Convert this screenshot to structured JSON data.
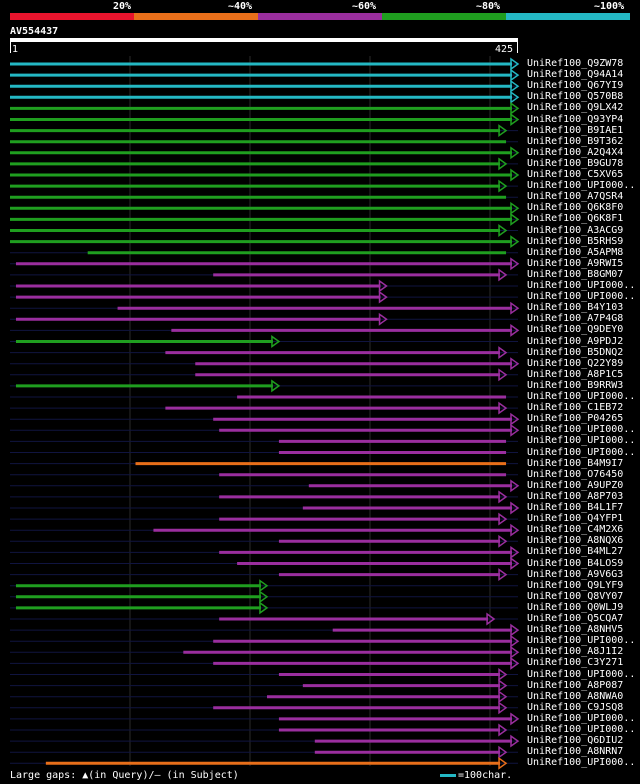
{
  "legend": {
    "colors": [
      "#e8142d",
      "#e86f1a",
      "#9a2e9e",
      "#1f9e1f",
      "#24b8c4"
    ],
    "labels": [
      "20%",
      "~40%",
      "~60%",
      "~80%",
      "~100%"
    ]
  },
  "query": {
    "name": "AV554437",
    "start": "1",
    "end": "425"
  },
  "footer": {
    "gaps": "Large gaps: ▲(in Query)/– (in Subject)",
    "scale": "=100char."
  },
  "hits": [
    {
      "label": "UniRef100_Q9ZW78",
      "c": "cyan",
      "s": 0,
      "e": 425,
      "arrow": true
    },
    {
      "label": "UniRef100_Q94A14",
      "c": "cyan",
      "s": 0,
      "e": 425,
      "arrow": true
    },
    {
      "label": "UniRef100_Q67YI9",
      "c": "cyan",
      "s": 0,
      "e": 425,
      "arrow": true
    },
    {
      "label": "UniRef100_Q570B8",
      "c": "cyan",
      "s": 0,
      "e": 425,
      "arrow": true
    },
    {
      "label": "UniRef100_Q9LX42",
      "c": "green",
      "s": 0,
      "e": 425,
      "arrow": true
    },
    {
      "label": "UniRef100_Q93YP4",
      "c": "green",
      "s": 0,
      "e": 425,
      "arrow": true
    },
    {
      "label": "UniRef100_B9IAE1",
      "c": "green",
      "s": 0,
      "e": 415,
      "arrow": true
    },
    {
      "label": "UniRef100_B9T362",
      "c": "green",
      "s": 0,
      "e": 415,
      "arrow": false
    },
    {
      "label": "UniRef100_A2Q4X4",
      "c": "green",
      "s": 0,
      "e": 425,
      "arrow": true
    },
    {
      "label": "UniRef100_B9GU78",
      "c": "green",
      "s": 0,
      "e": 415,
      "arrow": true
    },
    {
      "label": "UniRef100_C5XV65",
      "c": "green",
      "s": 0,
      "e": 425,
      "arrow": true
    },
    {
      "label": "UniRef100_UPI000..",
      "c": "green",
      "s": 0,
      "e": 415,
      "arrow": true
    },
    {
      "label": "UniRef100_A7QSR4",
      "c": "green",
      "s": 0,
      "e": 415,
      "arrow": false
    },
    {
      "label": "UniRef100_Q6K8F0",
      "c": "green",
      "s": 0,
      "e": 425,
      "arrow": true
    },
    {
      "label": "UniRef100_Q6K8F1",
      "c": "green",
      "s": 0,
      "e": 425,
      "arrow": true
    },
    {
      "label": "UniRef100_A3ACG9",
      "c": "green",
      "s": 0,
      "e": 415,
      "arrow": true
    },
    {
      "label": "UniRef100_B5RHS9",
      "c": "green",
      "s": 0,
      "e": 425,
      "arrow": true
    },
    {
      "label": "UniRef100_A5APM8",
      "c": "green",
      "s": 65,
      "e": 415,
      "arrow": false
    },
    {
      "label": "UniRef100_A9RWI5",
      "c": "magenta",
      "s": 5,
      "e": 425,
      "arrow": true
    },
    {
      "label": "UniRef100_B8GM07",
      "c": "magenta",
      "s": 170,
      "e": 415,
      "arrow": true
    },
    {
      "label": "UniRef100_UPI000..",
      "c": "magenta",
      "s": 5,
      "e": 315,
      "arrow": true
    },
    {
      "label": "UniRef100_UPI000..",
      "c": "magenta",
      "s": 5,
      "e": 315,
      "arrow": true
    },
    {
      "label": "UniRef100_B4Y103",
      "c": "magenta",
      "s": 90,
      "e": 425,
      "arrow": true
    },
    {
      "label": "UniRef100_A7P4G8",
      "c": "magenta",
      "s": 5,
      "e": 315,
      "arrow": true
    },
    {
      "label": "UniRef100_Q9DEY0",
      "c": "magenta",
      "s": 135,
      "e": 425,
      "arrow": true
    },
    {
      "label": "UniRef100_A9PDJ2",
      "c": "green",
      "s": 5,
      "e": 225,
      "arrow": true
    },
    {
      "label": "UniRef100_B5DNQ2",
      "c": "magenta",
      "s": 130,
      "e": 415,
      "arrow": true
    },
    {
      "label": "UniRef100_Q22Y89",
      "c": "magenta",
      "s": 155,
      "e": 425,
      "arrow": true
    },
    {
      "label": "UniRef100_A8P1C5",
      "c": "magenta",
      "s": 155,
      "e": 415,
      "arrow": true
    },
    {
      "label": "UniRef100_B9RRW3",
      "c": "green",
      "s": 5,
      "e": 225,
      "arrow": true
    },
    {
      "label": "UniRef100_UPI000..",
      "c": "magenta",
      "s": 190,
      "e": 415,
      "arrow": false
    },
    {
      "label": "UniRef100_C1EB72",
      "c": "magenta",
      "s": 130,
      "e": 415,
      "arrow": true
    },
    {
      "label": "UniRef100_P04265",
      "c": "magenta",
      "s": 170,
      "e": 425,
      "arrow": true
    },
    {
      "label": "UniRef100_UPI000..",
      "c": "magenta",
      "s": 175,
      "e": 425,
      "arrow": true
    },
    {
      "label": "UniRef100_UPI000..",
      "c": "magenta",
      "s": 225,
      "e": 415,
      "arrow": false
    },
    {
      "label": "UniRef100_UPI000..",
      "c": "magenta",
      "s": 225,
      "e": 415,
      "arrow": false
    },
    {
      "label": "UniRef100_B4M9I7",
      "c": "orange",
      "s": 105,
      "e": 415,
      "arrow": false
    },
    {
      "label": "UniRef100_O76450",
      "c": "magenta",
      "s": 175,
      "e": 415,
      "arrow": false
    },
    {
      "label": "UniRef100_A9UPZ0",
      "c": "magenta",
      "s": 250,
      "e": 425,
      "arrow": true
    },
    {
      "label": "UniRef100_A8P703",
      "c": "magenta",
      "s": 175,
      "e": 415,
      "arrow": true
    },
    {
      "label": "UniRef100_B4L1F7",
      "c": "magenta",
      "s": 245,
      "e": 425,
      "arrow": true
    },
    {
      "label": "UniRef100_Q4YFP1",
      "c": "magenta",
      "s": 175,
      "e": 415,
      "arrow": true
    },
    {
      "label": "UniRef100_C4M2X6",
      "c": "magenta",
      "s": 120,
      "e": 425,
      "arrow": true
    },
    {
      "label": "UniRef100_A8NQX6",
      "c": "magenta",
      "s": 225,
      "e": 415,
      "arrow": true
    },
    {
      "label": "UniRef100_B4ML27",
      "c": "magenta",
      "s": 175,
      "e": 425,
      "arrow": true
    },
    {
      "label": "UniRef100_B4LOS9",
      "c": "magenta",
      "s": 190,
      "e": 425,
      "arrow": true
    },
    {
      "label": "UniRef100_A9V6G3",
      "c": "magenta",
      "s": 225,
      "e": 415,
      "arrow": true
    },
    {
      "label": "UniRef100_Q9LYF9",
      "c": "green",
      "s": 5,
      "e": 215,
      "arrow": true
    },
    {
      "label": "UniRef100_Q8VY07",
      "c": "green",
      "s": 5,
      "e": 215,
      "arrow": true
    },
    {
      "label": "UniRef100_Q0WLJ9",
      "c": "green",
      "s": 5,
      "e": 215,
      "arrow": true
    },
    {
      "label": "UniRef100_Q5CQA7",
      "c": "magenta",
      "s": 175,
      "e": 405,
      "arrow": true
    },
    {
      "label": "UniRef100_A8NHV5",
      "c": "magenta",
      "s": 270,
      "e": 425,
      "arrow": true
    },
    {
      "label": "UniRef100_UPI000..",
      "c": "magenta",
      "s": 170,
      "e": 425,
      "arrow": true
    },
    {
      "label": "UniRef100_A8J1I2",
      "c": "magenta",
      "s": 145,
      "e": 425,
      "arrow": true
    },
    {
      "label": "UniRef100_C3Y271",
      "c": "magenta",
      "s": 170,
      "e": 425,
      "arrow": true
    },
    {
      "label": "UniRef100_UPI000..",
      "c": "magenta",
      "s": 225,
      "e": 415,
      "arrow": true
    },
    {
      "label": "UniRef100_A8P087",
      "c": "magenta",
      "s": 245,
      "e": 415,
      "arrow": true
    },
    {
      "label": "UniRef100_A8NWA0",
      "c": "magenta",
      "s": 215,
      "e": 415,
      "arrow": true
    },
    {
      "label": "UniRef100_C9JSQ8",
      "c": "magenta",
      "s": 170,
      "e": 415,
      "arrow": true
    },
    {
      "label": "UniRef100_UPI000..",
      "c": "magenta",
      "s": 225,
      "e": 425,
      "arrow": true
    },
    {
      "label": "UniRef100_UPI000..",
      "c": "magenta",
      "s": 225,
      "e": 415,
      "arrow": true
    },
    {
      "label": "UniRef100_Q6DIU2",
      "c": "magenta",
      "s": 255,
      "e": 425,
      "arrow": true
    },
    {
      "label": "UniRef100_A8NRN7",
      "c": "magenta",
      "s": 255,
      "e": 415,
      "arrow": true
    },
    {
      "label": "UniRef100_UPI000..",
      "c": "orange",
      "s": 30,
      "e": 415,
      "arrow": true
    }
  ]
}
